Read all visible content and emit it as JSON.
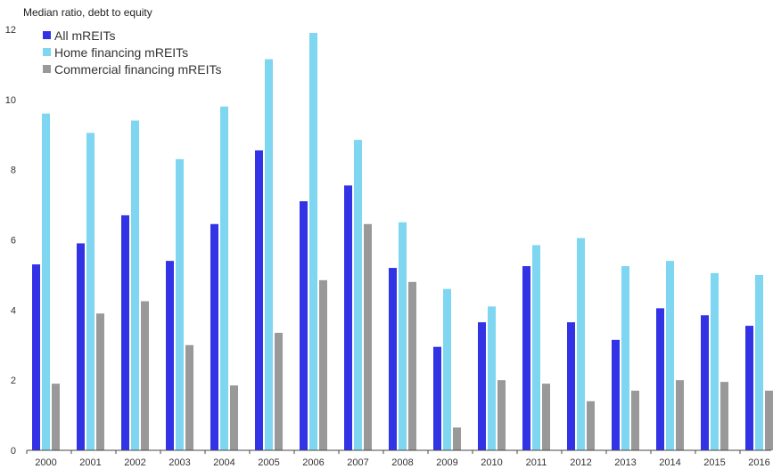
{
  "chart_data": {
    "type": "bar",
    "ylabel": "Median ratio, debt to equity",
    "ylim": [
      0,
      12
    ],
    "yticks": [
      0,
      2,
      4,
      6,
      8,
      10,
      12
    ],
    "grid": false,
    "legend_position": "top-left",
    "categories": [
      "2000",
      "2001",
      "2002",
      "2003",
      "2004",
      "2005",
      "2006",
      "2007",
      "2008",
      "2009",
      "2010",
      "2011",
      "2012",
      "2013",
      "2014",
      "2015",
      "2016"
    ],
    "series": [
      {
        "name": "All mREITs",
        "color": "#3333e6",
        "values": [
          5.3,
          5.9,
          6.7,
          5.4,
          6.45,
          8.55,
          7.1,
          7.55,
          5.2,
          2.95,
          3.65,
          5.25,
          3.65,
          3.15,
          4.05,
          3.85,
          3.55
        ]
      },
      {
        "name": "Home financing mREITs",
        "color": "#7fd6f0",
        "values": [
          9.6,
          9.05,
          9.4,
          8.3,
          9.8,
          11.15,
          11.9,
          8.85,
          6.5,
          4.6,
          4.1,
          5.85,
          6.05,
          5.25,
          5.4,
          5.05,
          5.0
        ]
      },
      {
        "name": "Commercial financing mREITs",
        "color": "#999999",
        "values": [
          1.9,
          3.9,
          4.25,
          3.0,
          1.85,
          3.35,
          4.85,
          6.45,
          4.8,
          0.65,
          2.0,
          1.9,
          1.4,
          1.7,
          2.0,
          1.95,
          1.7
        ]
      }
    ]
  }
}
